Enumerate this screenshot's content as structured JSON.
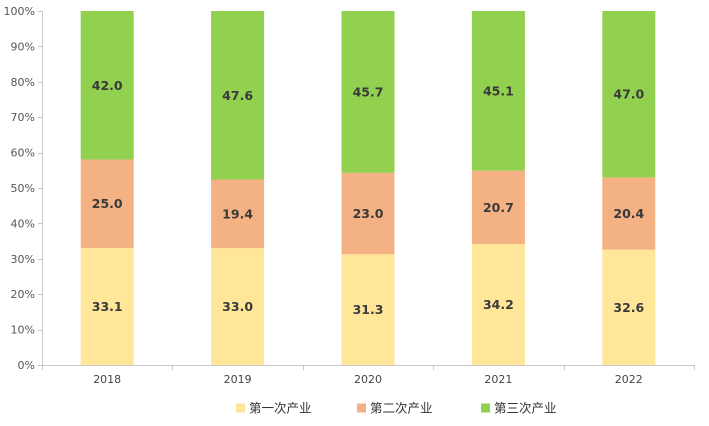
{
  "chart_data": {
    "type": "bar",
    "stacked": true,
    "percent": true,
    "title": "",
    "xlabel": "",
    "ylabel": "",
    "categories": [
      "2018",
      "2019",
      "2020",
      "2021",
      "2022"
    ],
    "series": [
      {
        "name": "第一次产业",
        "color": "#FFE699",
        "values": [
          33.1,
          33.0,
          31.3,
          34.2,
          32.6
        ]
      },
      {
        "name": "第二次产业",
        "color": "#F4B183",
        "values": [
          25.0,
          19.4,
          23.0,
          20.7,
          20.4
        ]
      },
      {
        "name": "第三次产业",
        "color": "#92D050",
        "values": [
          42.0,
          47.6,
          45.7,
          45.1,
          47.0
        ]
      }
    ],
    "ylim": [
      0,
      100
    ],
    "ytick_labels": [
      "0%",
      "10%",
      "20%",
      "30%",
      "40%",
      "50%",
      "60%",
      "70%",
      "80%",
      "90%",
      "100%"
    ],
    "grid": false,
    "legend_position": "bottom"
  }
}
